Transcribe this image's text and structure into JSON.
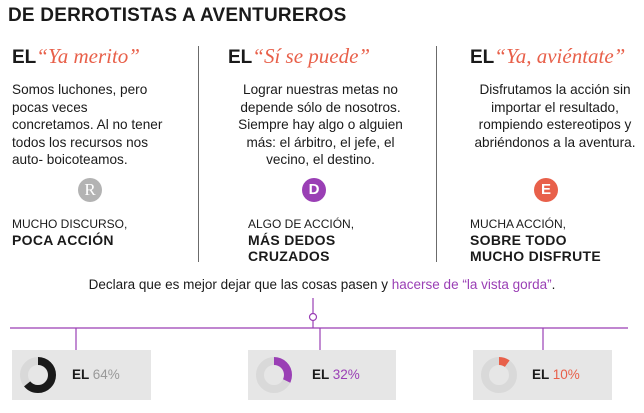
{
  "title": "DE DERROTISTAS A AVENTUREROS",
  "columns": [
    {
      "prefix": "EL",
      "quote": "“Ya merito”",
      "description": "Somos luchones, pero pocas veces concretamos. Al no tener todos los recursos nos auto- boicoteamos.",
      "badge": "R",
      "sub_small": "MUCHO DISCURSO,",
      "sub_strong": "POCA ACCIÓN",
      "stat_prefix": "EL",
      "stat_value": "64%",
      "percent": 64
    },
    {
      "prefix": "EL",
      "quote": "“Sí se puede”",
      "description": "Lograr nuestras metas no depende sólo de nosotros. Siempre hay algo o alguien más: el árbitro, el jefe, el vecino, el destino.",
      "badge": "D",
      "sub_small": "ALGO DE ACCIÓN,",
      "sub_strong_1": "MÁS DEDOS",
      "sub_strong_2": "CRUZADOS",
      "stat_prefix": "EL",
      "stat_value": "32%",
      "percent": 32
    },
    {
      "prefix": "EL",
      "quote": "“Ya, aviéntate”",
      "description": "Disfrutamos la acción sin importar el resultado, rompiendo estereotipos y abriéndonos a la aventura.",
      "badge": "E",
      "sub_small": "MUCHA ACCIÓN,",
      "sub_strong_1": "SOBRE TODO",
      "sub_strong_2": "MUCHO DISFRUTE",
      "stat_prefix": "EL",
      "stat_value": "10%",
      "percent": 10
    }
  ],
  "note": {
    "text": "Declara que es mejor dejar que las cosas pasen y ",
    "highlight": "hacerse de “la vista gorda”",
    "end": "."
  },
  "colors": {
    "accent_purple": "#9a3fb5",
    "accent_coral": "#e8604a",
    "gray": "#b3b3b3",
    "ring_base": "#d9d9d9",
    "ring_dark": "#1a1a1a"
  }
}
